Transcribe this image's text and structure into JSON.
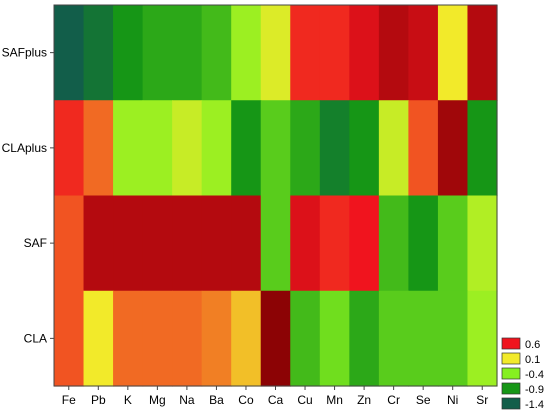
{
  "chart_data": {
    "type": "heatmap",
    "title": "",
    "xlabel": "",
    "ylabel": "",
    "x_categories": [
      "Fe",
      "Pb",
      "K",
      "Mg",
      "Na",
      "Ba",
      "Co",
      "Ca",
      "Cu",
      "Mn",
      "Zn",
      "Cr",
      "Se",
      "Ni",
      "Sr"
    ],
    "y_categories": [
      "SAFplus",
      "CLAplus",
      "SAF",
      "CLA"
    ],
    "values": [
      [
        -1.4,
        -1.2,
        -0.9,
        -0.8,
        -0.8,
        -0.7,
        -0.3,
        0.0,
        0.55,
        0.55,
        0.65,
        0.75,
        0.7,
        0.1,
        0.75
      ],
      [
        0.55,
        0.4,
        -0.3,
        -0.3,
        -0.1,
        -0.3,
        -0.9,
        -0.6,
        -0.8,
        -1.1,
        -0.9,
        -0.1,
        0.45,
        0.8,
        -0.9
      ],
      [
        0.45,
        0.75,
        0.75,
        0.75,
        0.75,
        0.75,
        0.75,
        -0.6,
        0.65,
        0.55,
        0.6,
        -0.7,
        -0.9,
        -0.6,
        -0.2
      ],
      [
        0.45,
        0.1,
        0.4,
        0.4,
        0.4,
        0.35,
        0.2,
        0.85,
        -0.7,
        -0.5,
        -0.8,
        -0.6,
        -0.6,
        -0.6,
        -0.3
      ]
    ],
    "legend": {
      "position": "bottom-right",
      "labels": [
        "0.6",
        "0.1",
        "-0.4",
        "-0.9",
        "-1.4"
      ],
      "colors": [
        "#f0141e",
        "#f2ea2a",
        "#86f020",
        "#169616",
        "#125e4a"
      ]
    },
    "grid": false
  }
}
